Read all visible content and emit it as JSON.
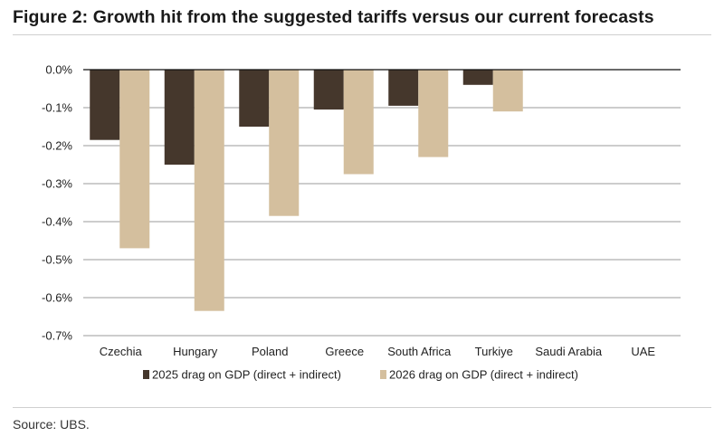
{
  "figure_title": "Figure 2: Growth hit from the suggested tariffs versus our current forecasts",
  "source": "Source: UBS.",
  "chart_data": {
    "type": "bar",
    "title": "Figure 2: Growth hit from the suggested tariffs versus our current forecasts",
    "xlabel": "",
    "ylabel": "",
    "categories": [
      "Czechia",
      "Hungary",
      "Poland",
      "Greece",
      "South Africa",
      "Turkiye",
      "Saudi Arabia",
      "UAE"
    ],
    "series": [
      {
        "name": "2025 drag on GDP (direct + indirect)",
        "color": "#45372c",
        "values": [
          -0.185,
          -0.25,
          -0.15,
          -0.105,
          -0.095,
          -0.04,
          0,
          0
        ]
      },
      {
        "name": "2026 drag on GDP (direct + indirect)",
        "color": "#d4bf9e",
        "values": [
          -0.47,
          -0.635,
          -0.385,
          -0.275,
          -0.23,
          -0.11,
          0,
          0
        ]
      }
    ],
    "ylim": [
      -0.7,
      0.0
    ],
    "yticks": [
      0.0,
      -0.1,
      -0.2,
      -0.3,
      -0.4,
      -0.5,
      -0.6,
      -0.7
    ],
    "ytick_labels": [
      "0.0%",
      "-0.1%",
      "-0.2%",
      "-0.3%",
      "-0.4%",
      "-0.5%",
      "-0.6%",
      "-0.7%"
    ],
    "grid": true,
    "legend_position": "bottom"
  }
}
